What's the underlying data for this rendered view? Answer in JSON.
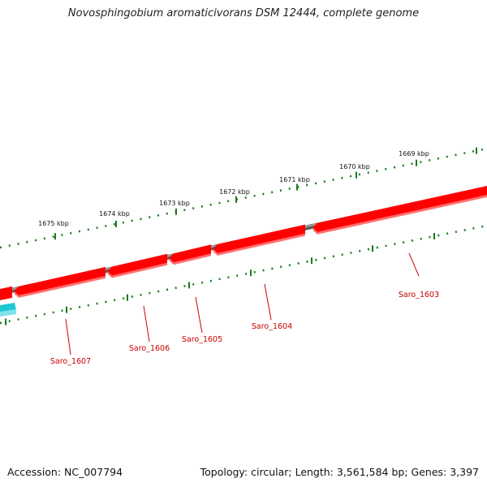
{
  "title": "Novosphingobium aromaticivorans DSM 12444, complete genome",
  "footer": {
    "accession": "Accession: NC_007794",
    "topology": "Topology: circular; Length: 3,561,584 bp; Genes: 3,397"
  },
  "colors": {
    "backbone": "#808080",
    "gene_forward": "#ff0000",
    "gene_reverse": "#1ec8d2",
    "ruler": "#1a7a1a",
    "label": "#cc0000"
  },
  "scale": {
    "kbp_labels": [
      "1675 kbp",
      "1674 kbp",
      "1673 kbp",
      "1672 kbp",
      "1671 kbp",
      "1670 kbp",
      "1669 kbp"
    ]
  },
  "genes": [
    {
      "label": "Saro_1603",
      "strand": "forward"
    },
    {
      "label": "Saro_1604",
      "strand": "forward"
    },
    {
      "label": "Saro_1605",
      "strand": "forward"
    },
    {
      "label": "Saro_1606",
      "strand": "forward"
    },
    {
      "label": "Saro_1607",
      "strand": "forward"
    }
  ]
}
